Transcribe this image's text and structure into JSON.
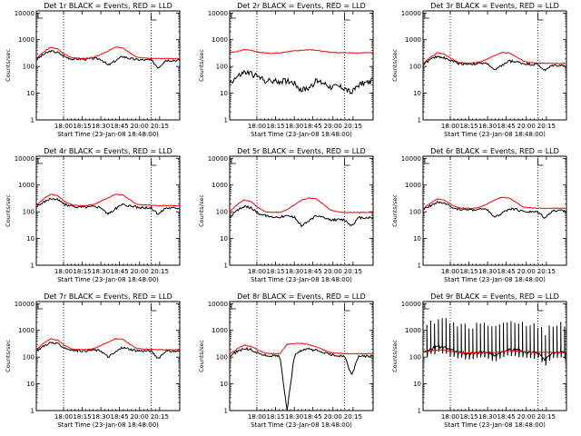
{
  "chart_data": [
    {
      "type": "line",
      "title": "Det 1r BLACK = Events, RED = LLD",
      "ylabel": "Counts/sec",
      "xlabel": "Start Time (23-Jan-08 18:48:00)",
      "x_ticks": [
        "18:00",
        "18:15",
        "18:30",
        "18:45",
        "20:00",
        "20:15"
      ],
      "y_ticks": [
        "1",
        "10",
        "100",
        "1000",
        "10000"
      ],
      "yscale": "log",
      "ylim": [
        1,
        12000
      ],
      "series": [
        {
          "color": "#000000",
          "shape": "hump",
          "y": [
            180,
            280,
            380,
            330,
            230,
            190,
            190,
            190,
            200,
            190,
            110,
            160,
            240,
            200,
            180,
            175,
            175,
            90,
            170,
            170,
            170
          ]
        },
        {
          "color": "#ff0000",
          "shape": "hump",
          "y": [
            200,
            350,
            520,
            450,
            280,
            210,
            200,
            200,
            220,
            280,
            380,
            520,
            500,
            330,
            220,
            210,
            200,
            195,
            200,
            200,
            200
          ]
        }
      ]
    },
    {
      "type": "line",
      "title": "Det 2r BLACK = Events, RED = LLD",
      "ylabel": "Counts/sec",
      "xlabel": "Start Time (23-Jan-08 18:48:00)",
      "x_ticks": [
        "18:00",
        "18:15",
        "18:30",
        "18:45",
        "20:00",
        "20:15"
      ],
      "y_ticks": [
        "1",
        "10",
        "100",
        "1000",
        "10000"
      ],
      "yscale": "log",
      "ylim": [
        1,
        12000
      ],
      "series": [
        {
          "color": "#000000",
          "shape": "noisy",
          "y": [
            25,
            40,
            60,
            55,
            40,
            30,
            28,
            28,
            30,
            25,
            13,
            16,
            28,
            25,
            18,
            18,
            16,
            10,
            22,
            25,
            30
          ]
        },
        {
          "color": "#ff0000",
          "shape": "smooth",
          "y": [
            330,
            360,
            430,
            400,
            340,
            320,
            310,
            320,
            350,
            380,
            400,
            420,
            410,
            370,
            340,
            330,
            330,
            320,
            320,
            330,
            330
          ]
        }
      ]
    },
    {
      "type": "line",
      "title": "Det 3r BLACK = Events, RED = LLD",
      "ylabel": "Counts/sec",
      "xlabel": "Start Time (23-Jan-08 18:48:00)",
      "x_ticks": [
        "18:00",
        "18:15",
        "18:30",
        "18:45",
        "20:00",
        "20:15"
      ],
      "y_ticks": [
        "1",
        "10",
        "100",
        "1000",
        "10000"
      ],
      "yscale": "log",
      "ylim": [
        1,
        12000
      ],
      "series": [
        {
          "color": "#000000",
          "shape": "hump",
          "y": [
            120,
            180,
            240,
            210,
            160,
            130,
            125,
            125,
            130,
            130,
            70,
            110,
            160,
            150,
            130,
            120,
            120,
            70,
            110,
            110,
            110
          ]
        },
        {
          "color": "#ff0000",
          "shape": "hump",
          "y": [
            130,
            220,
            320,
            290,
            190,
            140,
            135,
            135,
            150,
            190,
            260,
            330,
            320,
            230,
            160,
            140,
            135,
            130,
            130,
            130,
            130
          ]
        }
      ]
    },
    {
      "type": "line",
      "title": "Det 4r BLACK = Events, RED = LLD",
      "ylabel": "Counts/sec",
      "xlabel": "Start Time (23-Jan-08 18:48:00)",
      "x_ticks": [
        "18:00",
        "18:15",
        "18:30",
        "18:45",
        "20:00",
        "20:15"
      ],
      "y_ticks": [
        "1",
        "10",
        "100",
        "1000",
        "10000"
      ],
      "yscale": "log",
      "ylim": [
        1,
        12000
      ],
      "series": [
        {
          "color": "#000000",
          "shape": "hump",
          "y": [
            150,
            230,
            320,
            280,
            190,
            160,
            150,
            150,
            160,
            150,
            80,
            130,
            190,
            170,
            150,
            140,
            140,
            80,
            140,
            140,
            140
          ]
        },
        {
          "color": "#ff0000",
          "shape": "hump",
          "y": [
            170,
            300,
            450,
            400,
            240,
            180,
            170,
            170,
            190,
            250,
            330,
            450,
            440,
            290,
            190,
            180,
            175,
            170,
            170,
            170,
            170
          ]
        }
      ]
    },
    {
      "type": "line",
      "title": "Det 5r BLACK = Events, RED = LLD",
      "ylabel": "Counts/sec",
      "xlabel": "Start Time (23-Jan-08 18:48:00)",
      "x_ticks": [
        "18:00",
        "18:15",
        "18:30",
        "18:45",
        "20:00",
        "20:15"
      ],
      "y_ticks": [
        "1",
        "10",
        "100",
        "1000",
        "10000"
      ],
      "yscale": "log",
      "ylim": [
        1,
        12000
      ],
      "series": [
        {
          "color": "#000000",
          "shape": "hump",
          "y": [
            60,
            110,
            160,
            140,
            90,
            70,
            65,
            65,
            70,
            65,
            30,
            45,
            70,
            60,
            50,
            50,
            50,
            30,
            60,
            60,
            60
          ]
        },
        {
          "color": "#ff0000",
          "shape": "hump",
          "y": [
            100,
            180,
            280,
            240,
            140,
            100,
            95,
            95,
            120,
            180,
            270,
            330,
            310,
            200,
            120,
            100,
            95,
            95,
            95,
            95,
            95
          ]
        }
      ]
    },
    {
      "type": "line",
      "title": "Det 6r BLACK = Events, RED = LLD",
      "ylabel": "Counts/sec",
      "xlabel": "Start Time (23-Jan-08 18:48:00)",
      "x_ticks": [
        "18:00",
        "18:15",
        "18:30",
        "18:45",
        "20:00",
        "20:15"
      ],
      "y_ticks": [
        "1",
        "10",
        "100",
        "1000",
        "10000"
      ],
      "yscale": "log",
      "ylim": [
        1,
        12000
      ],
      "series": [
        {
          "color": "#000000",
          "shape": "hump",
          "y": [
            120,
            170,
            230,
            200,
            150,
            125,
            120,
            120,
            125,
            120,
            60,
            90,
            130,
            120,
            105,
            100,
            100,
            60,
            110,
            110,
            110
          ]
        },
        {
          "color": "#ff0000",
          "shape": "hump",
          "y": [
            130,
            210,
            300,
            270,
            180,
            140,
            135,
            135,
            150,
            200,
            280,
            350,
            330,
            220,
            150,
            140,
            135,
            135,
            135,
            135,
            135
          ]
        }
      ]
    },
    {
      "type": "line",
      "title": "Det 7r BLACK = Events, RED = LLD",
      "ylabel": "Counts/sec",
      "xlabel": "Start Time (23-Jan-08 18:48:00)",
      "x_ticks": [
        "18:00",
        "18:15",
        "18:30",
        "18:45",
        "20:00",
        "20:15"
      ],
      "y_ticks": [
        "1",
        "10",
        "100",
        "1000",
        "10000"
      ],
      "yscale": "log",
      "ylim": [
        1,
        12000
      ],
      "series": [
        {
          "color": "#000000",
          "shape": "hump",
          "y": [
            170,
            260,
            350,
            310,
            220,
            180,
            175,
            175,
            185,
            175,
            100,
            150,
            230,
            200,
            175,
            170,
            170,
            90,
            165,
            165,
            165
          ]
        },
        {
          "color": "#ff0000",
          "shape": "hump",
          "y": [
            190,
            330,
            480,
            430,
            270,
            200,
            190,
            190,
            210,
            270,
            360,
            490,
            470,
            310,
            210,
            200,
            195,
            190,
            190,
            190,
            190
          ]
        }
      ]
    },
    {
      "type": "line",
      "title": "Det 8r BLACK = Events, RED = LLD",
      "ylabel": "Counts/sec",
      "xlabel": "Start Time (23-Jan-08 18:48:00)",
      "x_ticks": [
        "18:00",
        "18:15",
        "18:30",
        "18:45",
        "20:00",
        "20:15"
      ],
      "y_ticks": [
        "1",
        "10",
        "100",
        "1000",
        "10000"
      ],
      "yscale": "log",
      "ylim": [
        1,
        12000
      ],
      "series": [
        {
          "color": "#000000",
          "shape": "dip",
          "y": [
            110,
            160,
            210,
            190,
            140,
            115,
            110,
            110,
            1,
            110,
            180,
            200,
            180,
            150,
            125,
            115,
            110,
            20,
            110,
            110,
            110
          ]
        },
        {
          "color": "#ff0000",
          "shape": "hump",
          "y": [
            130,
            200,
            280,
            250,
            180,
            140,
            135,
            135,
            300,
            320,
            330,
            300,
            250,
            190,
            150,
            140,
            135,
            135,
            135,
            135,
            135
          ]
        }
      ]
    },
    {
      "type": "line",
      "title": "Det 9r BLACK = Events, RED = LLD",
      "ylabel": "Counts/sec",
      "xlabel": "Start Time (23-Jan-08 18:48:00)",
      "x_ticks": [
        "18:00",
        "18:15",
        "18:30",
        "18:45",
        "20:00",
        "20:15"
      ],
      "y_ticks": [
        "1",
        "10",
        "100",
        "1000",
        "10000"
      ],
      "yscale": "log",
      "ylim": [
        1,
        12000
      ],
      "series": [
        {
          "color": "#000000",
          "shape": "spiky",
          "y": [
            150,
            200,
            250,
            230,
            180,
            150,
            140,
            140,
            150,
            150,
            120,
            150,
            200,
            190,
            160,
            150,
            150,
            80,
            150,
            150,
            150
          ]
        },
        {
          "color": "#ff0000",
          "shape": "smooth",
          "y": [
            150,
            170,
            190,
            180,
            160,
            150,
            145,
            145,
            150,
            150,
            150,
            160,
            175,
            170,
            160,
            150,
            150,
            150,
            150,
            150,
            150
          ]
        }
      ]
    }
  ]
}
